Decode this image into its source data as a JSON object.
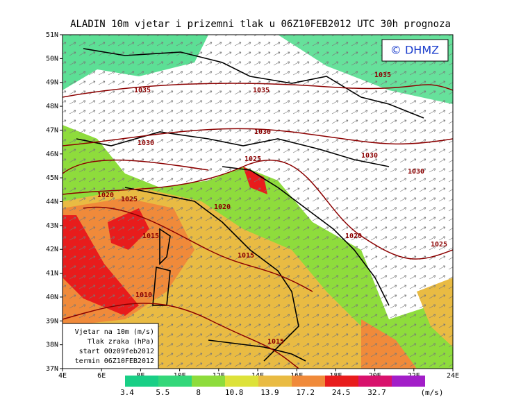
{
  "title": "ALADIN 10m vjetar i prizemni tlak u 06Z10FEB2012 UTC 30h prognoza",
  "copyright": "© DHMZ",
  "lat_labels": [
    "51N",
    "50N",
    "49N",
    "48N",
    "47N",
    "46N",
    "45N",
    "44N",
    "43N",
    "42N",
    "41N",
    "40N",
    "39N",
    "38N",
    "37N"
  ],
  "lon_labels": [
    "4E",
    "6E",
    "8E",
    "10E",
    "12E",
    "14E",
    "16E",
    "18E",
    "20E",
    "22E",
    "24E"
  ],
  "legend": {
    "lines": [
      "Vjetar na 10m (m/s)",
      "Tlak zraka (hPa)",
      "start 00z09feb2012",
      "termin 06Z10FEB2012"
    ]
  },
  "colorbar": {
    "levels": [
      "3.4",
      "5.5",
      "8",
      "10.8",
      "13.9",
      "17.2",
      "24.5",
      "32.7"
    ],
    "unit": "(m/s)",
    "colors": [
      "#19cf86",
      "#33d77a",
      "#8edc3c",
      "#dde23a",
      "#e9bb43",
      "#f08a3a",
      "#e81c1c",
      "#d8126c",
      "#a21ec8"
    ]
  },
  "isobars": [
    "1035",
    "1035",
    "1035",
    "1030",
    "1030",
    "1030",
    "1030",
    "1025",
    "1020",
    "1025",
    "1020",
    "1015",
    "1020",
    "1025",
    "1015",
    "1010",
    "1015"
  ]
}
